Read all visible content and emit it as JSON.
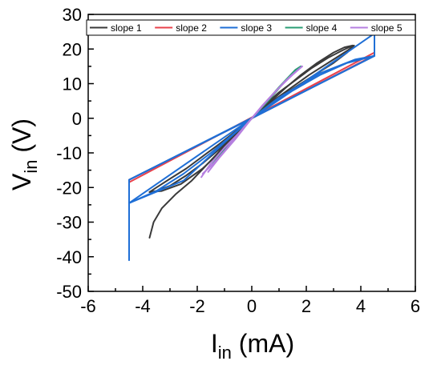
{
  "chart_data": {
    "type": "line",
    "title": "",
    "xlabel": {
      "main": "I",
      "sub": "in",
      "unit": " (mA)"
    },
    "ylabel": {
      "main": "V",
      "sub": "in",
      "unit": " (V)"
    },
    "xlim": [
      -6,
      6
    ],
    "ylim": [
      -50,
      30
    ],
    "xticks": [
      "-6",
      "-4",
      "-2",
      "0",
      "2",
      "4",
      "6"
    ],
    "yticks": [
      "-50",
      "-40",
      "-30",
      "-20",
      "-10",
      "0",
      "10",
      "20",
      "30"
    ],
    "grid": false,
    "legend_position": "top",
    "series": [
      {
        "name": "slope 1",
        "color": "#3a3a3a",
        "paths": [
          [
            [
              -3.75,
              -34.5
            ],
            [
              -3.6,
              -30
            ],
            [
              -3.3,
              -26
            ],
            [
              -2.8,
              -22
            ],
            [
              -2.2,
              -18
            ],
            [
              -1.6,
              -13
            ],
            [
              -1,
              -8
            ],
            [
              -0.5,
              -4
            ],
            [
              0,
              0
            ],
            [
              0.5,
              4
            ],
            [
              1,
              7.5
            ],
            [
              1.6,
              11
            ],
            [
              2.2,
              14.5
            ],
            [
              2.8,
              17.5
            ],
            [
              3.3,
              19.5
            ],
            [
              3.7,
              21
            ]
          ],
          [
            [
              3.7,
              21
            ],
            [
              3.4,
              20.5
            ],
            [
              3,
              19
            ],
            [
              2.4,
              16
            ],
            [
              1.8,
              12.5
            ],
            [
              1.2,
              8.5
            ],
            [
              0.6,
              4.2
            ],
            [
              0,
              0
            ],
            [
              -0.6,
              -4.5
            ],
            [
              -1.2,
              -9
            ],
            [
              -1.8,
              -13
            ],
            [
              -2.4,
              -16.5
            ],
            [
              -3,
              -19.5
            ],
            [
              -3.5,
              -21
            ],
            [
              -3.75,
              -21.3
            ]
          ],
          [
            [
              -3.75,
              -21.3
            ],
            [
              -3.3,
              -21
            ],
            [
              -2.6,
              -19
            ],
            [
              -1.8,
              -14.5
            ],
            [
              -1,
              -8.5
            ],
            [
              -0.5,
              -4.2
            ],
            [
              0,
              0
            ],
            [
              0.6,
              4
            ],
            [
              1.3,
              8
            ],
            [
              2.1,
              12.5
            ],
            [
              2.9,
              16.5
            ],
            [
              3.5,
              19.5
            ],
            [
              3.75,
              21
            ]
          ],
          [
            [
              3.75,
              21
            ],
            [
              3.5,
              19
            ],
            [
              3,
              16
            ],
            [
              2.4,
              13
            ],
            [
              1.8,
              10
            ],
            [
              1.2,
              7
            ],
            [
              0.6,
              3.6
            ],
            [
              0,
              0
            ],
            [
              -0.6,
              -3.8
            ],
            [
              -1.2,
              -7.5
            ],
            [
              -1.8,
              -11
            ],
            [
              -2.4,
              -14.5
            ],
            [
              -3,
              -17.5
            ],
            [
              -3.5,
              -20
            ],
            [
              -3.75,
              -21.3
            ]
          ]
        ]
      },
      {
        "name": "slope 2",
        "color": "#e8414b",
        "paths": [
          [
            [
              -4.5,
              -18.5
            ],
            [
              4.5,
              19
            ]
          ],
          [
            [
              -4.5,
              -17.8
            ],
            [
              0,
              0
            ],
            [
              4.5,
              18.2
            ]
          ]
        ]
      },
      {
        "name": "slope 3",
        "color": "#1f6fd6",
        "paths": [
          [
            [
              -4.5,
              -41
            ],
            [
              -4.5,
              -17.8
            ],
            [
              0,
              0
            ],
            [
              4.5,
              18
            ],
            [
              4.5,
              24.5
            ],
            [
              0,
              0
            ],
            [
              -4.5,
              -24.5
            ]
          ],
          [
            [
              -4.5,
              -17.8
            ],
            [
              4.5,
              18
            ]
          ],
          [
            [
              -4.5,
              -24.5
            ],
            [
              -2.5,
              -18
            ],
            [
              -1,
              -7
            ],
            [
              0,
              0
            ],
            [
              1,
              6
            ],
            [
              2.5,
              13
            ],
            [
              3.8,
              17
            ],
            [
              4.5,
              18
            ]
          ],
          [
            [
              -4.5,
              -24.5
            ],
            [
              -3.5,
              -21
            ],
            [
              -2.5,
              -16
            ],
            [
              -1.5,
              -10
            ],
            [
              0,
              0
            ],
            [
              1.5,
              8
            ],
            [
              2.5,
              12.5
            ],
            [
              3.5,
              16
            ],
            [
              4.5,
              18
            ]
          ]
        ]
      },
      {
        "name": "slope 4",
        "color": "#2a9d74",
        "paths": [
          [
            [
              -1.4,
              -13
            ],
            [
              -1,
              -9
            ],
            [
              -0.5,
              -4.5
            ],
            [
              0,
              0
            ],
            [
              0.5,
              4.5
            ],
            [
              1,
              9
            ],
            [
              1.6,
              14
            ],
            [
              1.8,
              15
            ]
          ],
          [
            [
              1.8,
              15
            ],
            [
              1.2,
              10.5
            ],
            [
              0.6,
              5
            ],
            [
              0,
              0
            ],
            [
              -0.6,
              -5.5
            ],
            [
              -1.2,
              -11
            ],
            [
              -1.45,
              -13.3
            ]
          ]
        ]
      },
      {
        "name": "slope 5",
        "color": "#b67fe0",
        "paths": [
          [
            [
              -1.85,
              -17
            ],
            [
              -1.5,
              -13
            ],
            [
              -1,
              -8.5
            ],
            [
              -0.5,
              -4.5
            ],
            [
              0,
              0
            ],
            [
              0.5,
              4.5
            ],
            [
              1,
              8.8
            ],
            [
              1.5,
              12.6
            ],
            [
              1.85,
              15
            ]
          ],
          [
            [
              1.85,
              15
            ],
            [
              1.4,
              12
            ],
            [
              0.9,
              8
            ],
            [
              0.4,
              3.8
            ],
            [
              0,
              0
            ],
            [
              -0.5,
              -4.8
            ],
            [
              -1,
              -9.5
            ],
            [
              -1.4,
              -13
            ],
            [
              -1.8,
              -16
            ]
          ],
          [
            [
              -1.6,
              -15.5
            ],
            [
              -1.2,
              -11.5
            ],
            [
              -0.6,
              -6
            ],
            [
              0,
              0
            ],
            [
              0.6,
              5.5
            ],
            [
              1.2,
              10.5
            ],
            [
              1.7,
              14
            ]
          ]
        ]
      }
    ]
  }
}
